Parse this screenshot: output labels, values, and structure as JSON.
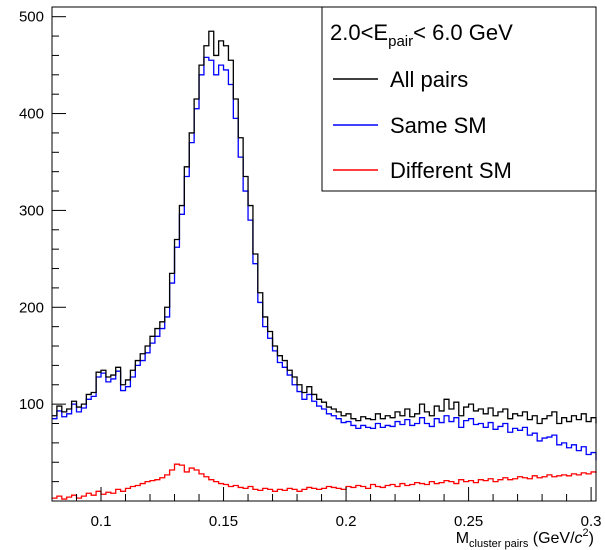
{
  "chart_data": {
    "type": "line",
    "subtype": "step-histogram",
    "xlim": [
      0.08,
      0.302
    ],
    "ylim": [
      0,
      510
    ],
    "x_ticks": [
      0.1,
      0.15,
      0.2,
      0.25,
      0.3
    ],
    "x_tick_labels": [
      "0.1",
      "0.15",
      "0.2",
      "0.25",
      "0.3"
    ],
    "y_ticks": [
      100,
      200,
      300,
      400,
      500
    ],
    "y_tick_labels": [
      "100",
      "200",
      "300",
      "400",
      "500"
    ],
    "xlabel": {
      "main": "M",
      "sub": "cluster pairs",
      "units_pre": " (GeV/",
      "units_c": "c",
      "units_exp": "2",
      "units_post": ")"
    },
    "grid": false,
    "legend": {
      "placement": "top-right",
      "header": {
        "pre": "2.0<E",
        "sub": "pair",
        "post": "< 6.0 GeV"
      },
      "entries": [
        "All pairs",
        "Same SM",
        "Different SM"
      ]
    },
    "bin_width": 0.002,
    "x_start": 0.08,
    "series": [
      {
        "name": "All pairs",
        "color": "#000000",
        "values": [
          88,
          98,
          92,
          95,
          103,
          97,
          100,
          110,
          112,
          133,
          135,
          128,
          130,
          138,
          120,
          125,
          135,
          145,
          152,
          160,
          170,
          178,
          185,
          200,
          235,
          270,
          305,
          345,
          380,
          415,
          450,
          470,
          485,
          460,
          475,
          470,
          455,
          415,
          375,
          335,
          305,
          255,
          215,
          190,
          175,
          160,
          150,
          145,
          135,
          128,
          120,
          112,
          118,
          110,
          105,
          102,
          97,
          95,
          92,
          88,
          90,
          85,
          83,
          87,
          85,
          84,
          90,
          85,
          88,
          86,
          92,
          88,
          95,
          87,
          90,
          100,
          92,
          88,
          98,
          93,
          105,
          95,
          102,
          88,
          97,
          100,
          93,
          95,
          90,
          96,
          88,
          92,
          95,
          85,
          90,
          88,
          92,
          84,
          88,
          80,
          85,
          88,
          92,
          80,
          86,
          82,
          88,
          84,
          90,
          82,
          86,
          80
        ]
      },
      {
        "name": "Same SM",
        "color": "#0000ff",
        "values": [
          85,
          93,
          87,
          90,
          100,
          92,
          96,
          105,
          108,
          128,
          132,
          123,
          126,
          134,
          114,
          118,
          128,
          140,
          145,
          153,
          163,
          170,
          178,
          190,
          225,
          262,
          296,
          335,
          370,
          405,
          440,
          458,
          455,
          440,
          450,
          445,
          430,
          395,
          355,
          320,
          290,
          245,
          205,
          180,
          168,
          155,
          143,
          138,
          130,
          120,
          113,
          105,
          110,
          103,
          98,
          95,
          90,
          88,
          85,
          81,
          82,
          78,
          75,
          78,
          76,
          75,
          80,
          76,
          78,
          77,
          82,
          79,
          84,
          78,
          80,
          86,
          80,
          77,
          85,
          81,
          88,
          82,
          86,
          76,
          83,
          85,
          79,
          80,
          76,
          81,
          74,
          77,
          80,
          71,
          75,
          73,
          76,
          68,
          70,
          62,
          65,
          66,
          68,
          58,
          60,
          55,
          58,
          52,
          56,
          48,
          50,
          42
        ]
      },
      {
        "name": "Different SM",
        "color": "#ff0000",
        "values": [
          3,
          5,
          2,
          4,
          6,
          3,
          5,
          8,
          6,
          10,
          7,
          9,
          8,
          12,
          10,
          13,
          15,
          16,
          18,
          20,
          21,
          22,
          24,
          27,
          32,
          38,
          37,
          30,
          34,
          32,
          28,
          25,
          22,
          20,
          18,
          17,
          15,
          16,
          14,
          13,
          15,
          12,
          11,
          13,
          12,
          10,
          12,
          11,
          13,
          12,
          10,
          12,
          14,
          13,
          12,
          13,
          15,
          14,
          13,
          12,
          15,
          14,
          16,
          15,
          13,
          17,
          15,
          14,
          16,
          17,
          15,
          18,
          16,
          17,
          19,
          18,
          17,
          20,
          18,
          19,
          21,
          20,
          18,
          22,
          20,
          21,
          19,
          22,
          21,
          23,
          20,
          22,
          24,
          22,
          23,
          25,
          24,
          23,
          26,
          24,
          25,
          27,
          25,
          26,
          27,
          26,
          28,
          27,
          29,
          28,
          30,
          29
        ]
      }
    ]
  }
}
